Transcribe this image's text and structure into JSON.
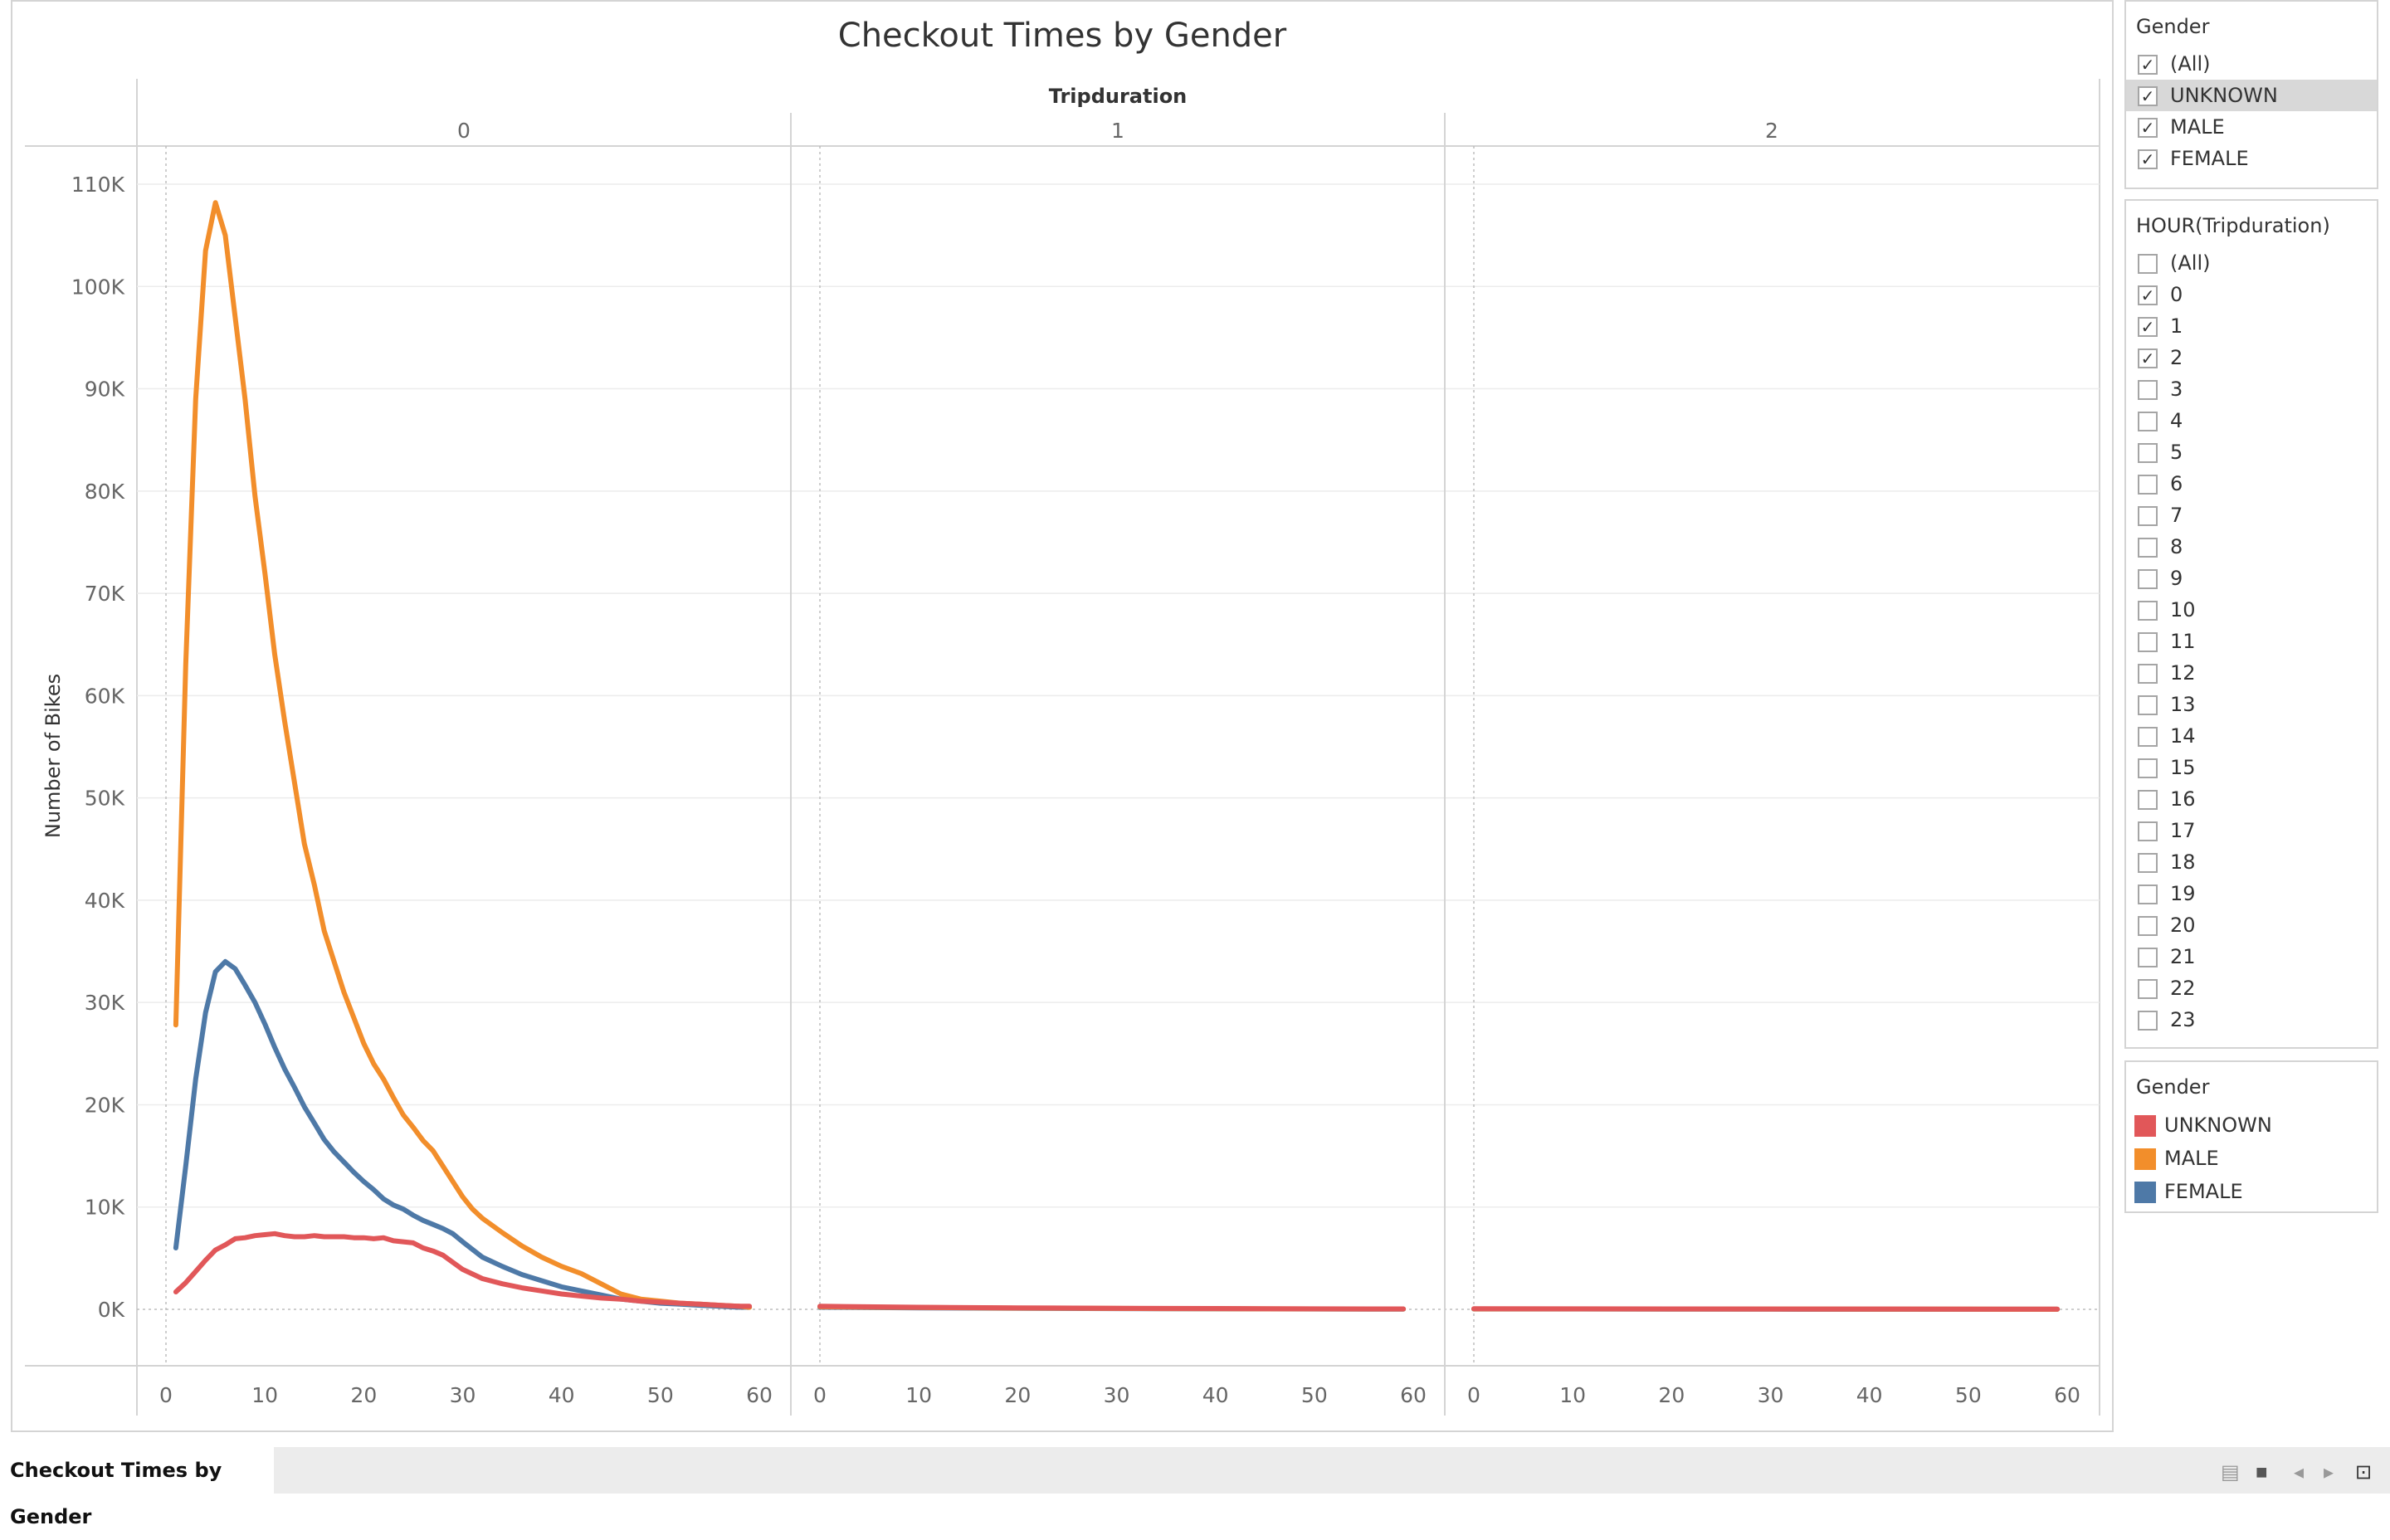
{
  "title": "Checkout Times by Gender",
  "chart_data": {
    "type": "line",
    "title": "Checkout Times by Gender",
    "column_header": "Tripduration",
    "ylabel": "Number of Bikes",
    "ylim": [
      0,
      110000
    ],
    "yticks": [
      0,
      10000,
      20000,
      30000,
      40000,
      50000,
      60000,
      70000,
      80000,
      90000,
      100000,
      110000
    ],
    "ytick_labels": [
      "0K",
      "10K",
      "20K",
      "30K",
      "40K",
      "50K",
      "60K",
      "70K",
      "80K",
      "90K",
      "100K",
      "110K"
    ],
    "xlim": [
      0,
      60
    ],
    "xticks": [
      0,
      10,
      20,
      30,
      40,
      50,
      60
    ],
    "grid": true,
    "legend": "right",
    "panels": [
      {
        "label": "0",
        "series": [
          {
            "name": "UNKNOWN",
            "color": "#e15759",
            "x": [
              1,
              2,
              3,
              4,
              5,
              6,
              7,
              8,
              9,
              10,
              11,
              12,
              13,
              14,
              15,
              16,
              17,
              18,
              19,
              20,
              21,
              22,
              23,
              24,
              25,
              26,
              27,
              28,
              29,
              30,
              32,
              34,
              36,
              38,
              40,
              42,
              44,
              46,
              48,
              50,
              52,
              54,
              56,
              58,
              59
            ],
            "y": [
              1700,
              2600,
              3700,
              4800,
              5800,
              6300,
              6900,
              7000,
              7200,
              7300,
              7400,
              7200,
              7100,
              7100,
              7200,
              7100,
              7100,
              7100,
              7000,
              7000,
              6900,
              7000,
              6700,
              6600,
              6500,
              6000,
              5700,
              5300,
              4600,
              3900,
              3000,
              2500,
              2100,
              1800,
              1500,
              1300,
              1100,
              1000,
              800,
              700,
              600,
              500,
              400,
              300,
              300
            ]
          },
          {
            "name": "MALE",
            "color": "#f28e2b",
            "x": [
              1,
              2,
              3,
              4,
              5,
              6,
              7,
              8,
              9,
              10,
              11,
              12,
              13,
              14,
              15,
              16,
              17,
              18,
              19,
              20,
              21,
              22,
              23,
              24,
              25,
              26,
              27,
              28,
              29,
              30,
              31,
              32,
              34,
              36,
              38,
              40,
              42,
              44,
              46,
              48,
              50,
              52,
              54,
              56,
              58,
              59
            ],
            "y": [
              27800,
              63000,
              89000,
              103500,
              108200,
              105000,
              97000,
              89000,
              79500,
              72000,
              64000,
              57500,
              51500,
              45500,
              41500,
              37000,
              34000,
              31000,
              28500,
              26000,
              24000,
              22500,
              20700,
              19000,
              17800,
              16500,
              15500,
              14000,
              12500,
              11000,
              9800,
              8900,
              7500,
              6200,
              5100,
              4200,
              3500,
              2500,
              1500,
              1000,
              800,
              600,
              500,
              400,
              300,
              200
            ]
          },
          {
            "name": "FEMALE",
            "color": "#4e79a7",
            "x": [
              1,
              2,
              3,
              4,
              5,
              6,
              7,
              8,
              9,
              10,
              11,
              12,
              13,
              14,
              15,
              16,
              17,
              18,
              19,
              20,
              21,
              22,
              23,
              24,
              25,
              26,
              27,
              28,
              29,
              30,
              32,
              34,
              36,
              38,
              40,
              42,
              44,
              46,
              48,
              50,
              52,
              54,
              56,
              58,
              59
            ],
            "y": [
              6000,
              14000,
              22500,
              29000,
              33000,
              34000,
              33300,
              31700,
              30000,
              27900,
              25600,
              23500,
              21700,
              19800,
              18200,
              16600,
              15400,
              14400,
              13400,
              12500,
              11700,
              10800,
              10200,
              9800,
              9200,
              8700,
              8300,
              7900,
              7400,
              6600,
              5100,
              4200,
              3400,
              2800,
              2200,
              1800,
              1400,
              1000,
              800,
              600,
              500,
              400,
              300,
              200,
              200
            ]
          }
        ]
      },
      {
        "label": "1",
        "series": [
          {
            "name": "UNKNOWN",
            "color": "#e15759",
            "x": [
              0,
              10,
              20,
              30,
              40,
              50,
              59
            ],
            "y": [
              300,
              200,
              150,
              100,
              80,
              50,
              40
            ]
          },
          {
            "name": "MALE",
            "color": "#f28e2b",
            "x": [
              0,
              10,
              20,
              30,
              40,
              50,
              59
            ],
            "y": [
              250,
              180,
              120,
              90,
              60,
              40,
              30
            ]
          },
          {
            "name": "FEMALE",
            "color": "#4e79a7",
            "x": [
              0,
              10,
              20,
              30,
              40,
              50,
              59
            ],
            "y": [
              200,
              150,
              100,
              70,
              50,
              30,
              20
            ]
          }
        ]
      },
      {
        "label": "2",
        "series": [
          {
            "name": "UNKNOWN",
            "color": "#e15759",
            "x": [
              0,
              10,
              20,
              30,
              40,
              50,
              59
            ],
            "y": [
              60,
              50,
              40,
              30,
              30,
              20,
              20
            ]
          },
          {
            "name": "MALE",
            "color": "#f28e2b",
            "x": [
              0,
              10,
              20,
              30,
              40,
              50,
              59
            ],
            "y": [
              40,
              40,
              30,
              30,
              20,
              20,
              10
            ]
          },
          {
            "name": "FEMALE",
            "color": "#4e79a7",
            "x": [
              0,
              10,
              20,
              30,
              40,
              50,
              59
            ],
            "y": [
              30,
              30,
              20,
              20,
              10,
              10,
              10
            ]
          }
        ]
      }
    ]
  },
  "filters": {
    "gender": {
      "title": "Gender",
      "items": [
        {
          "label": "(All)",
          "checked": true
        },
        {
          "label": "UNKNOWN",
          "checked": true
        },
        {
          "label": "MALE",
          "checked": true
        },
        {
          "label": "FEMALE",
          "checked": true
        }
      ]
    },
    "hour": {
      "title": "HOUR(Tripduration)",
      "items": [
        {
          "label": "(All)",
          "checked": false
        },
        {
          "label": "0",
          "checked": true
        },
        {
          "label": "1",
          "checked": true
        },
        {
          "label": "2",
          "checked": true
        },
        {
          "label": "3",
          "checked": false
        },
        {
          "label": "4",
          "checked": false
        },
        {
          "label": "5",
          "checked": false
        },
        {
          "label": "6",
          "checked": false
        },
        {
          "label": "7",
          "checked": false
        },
        {
          "label": "8",
          "checked": false
        },
        {
          "label": "9",
          "checked": false
        },
        {
          "label": "10",
          "checked": false
        },
        {
          "label": "11",
          "checked": false
        },
        {
          "label": "12",
          "checked": false
        },
        {
          "label": "13",
          "checked": false
        },
        {
          "label": "14",
          "checked": false
        },
        {
          "label": "15",
          "checked": false
        },
        {
          "label": "16",
          "checked": false
        },
        {
          "label": "17",
          "checked": false
        },
        {
          "label": "18",
          "checked": false
        },
        {
          "label": "19",
          "checked": false
        },
        {
          "label": "20",
          "checked": false
        },
        {
          "label": "21",
          "checked": false
        },
        {
          "label": "22",
          "checked": false
        },
        {
          "label": "23",
          "checked": false
        }
      ]
    }
  },
  "legend": {
    "title": "Gender",
    "items": [
      {
        "label": "UNKNOWN",
        "color": "#e15759"
      },
      {
        "label": "MALE",
        "color": "#f28e2b"
      },
      {
        "label": "FEMALE",
        "color": "#4e79a7"
      }
    ]
  },
  "sheet_tab": {
    "label": "Checkout Times by Gender"
  }
}
